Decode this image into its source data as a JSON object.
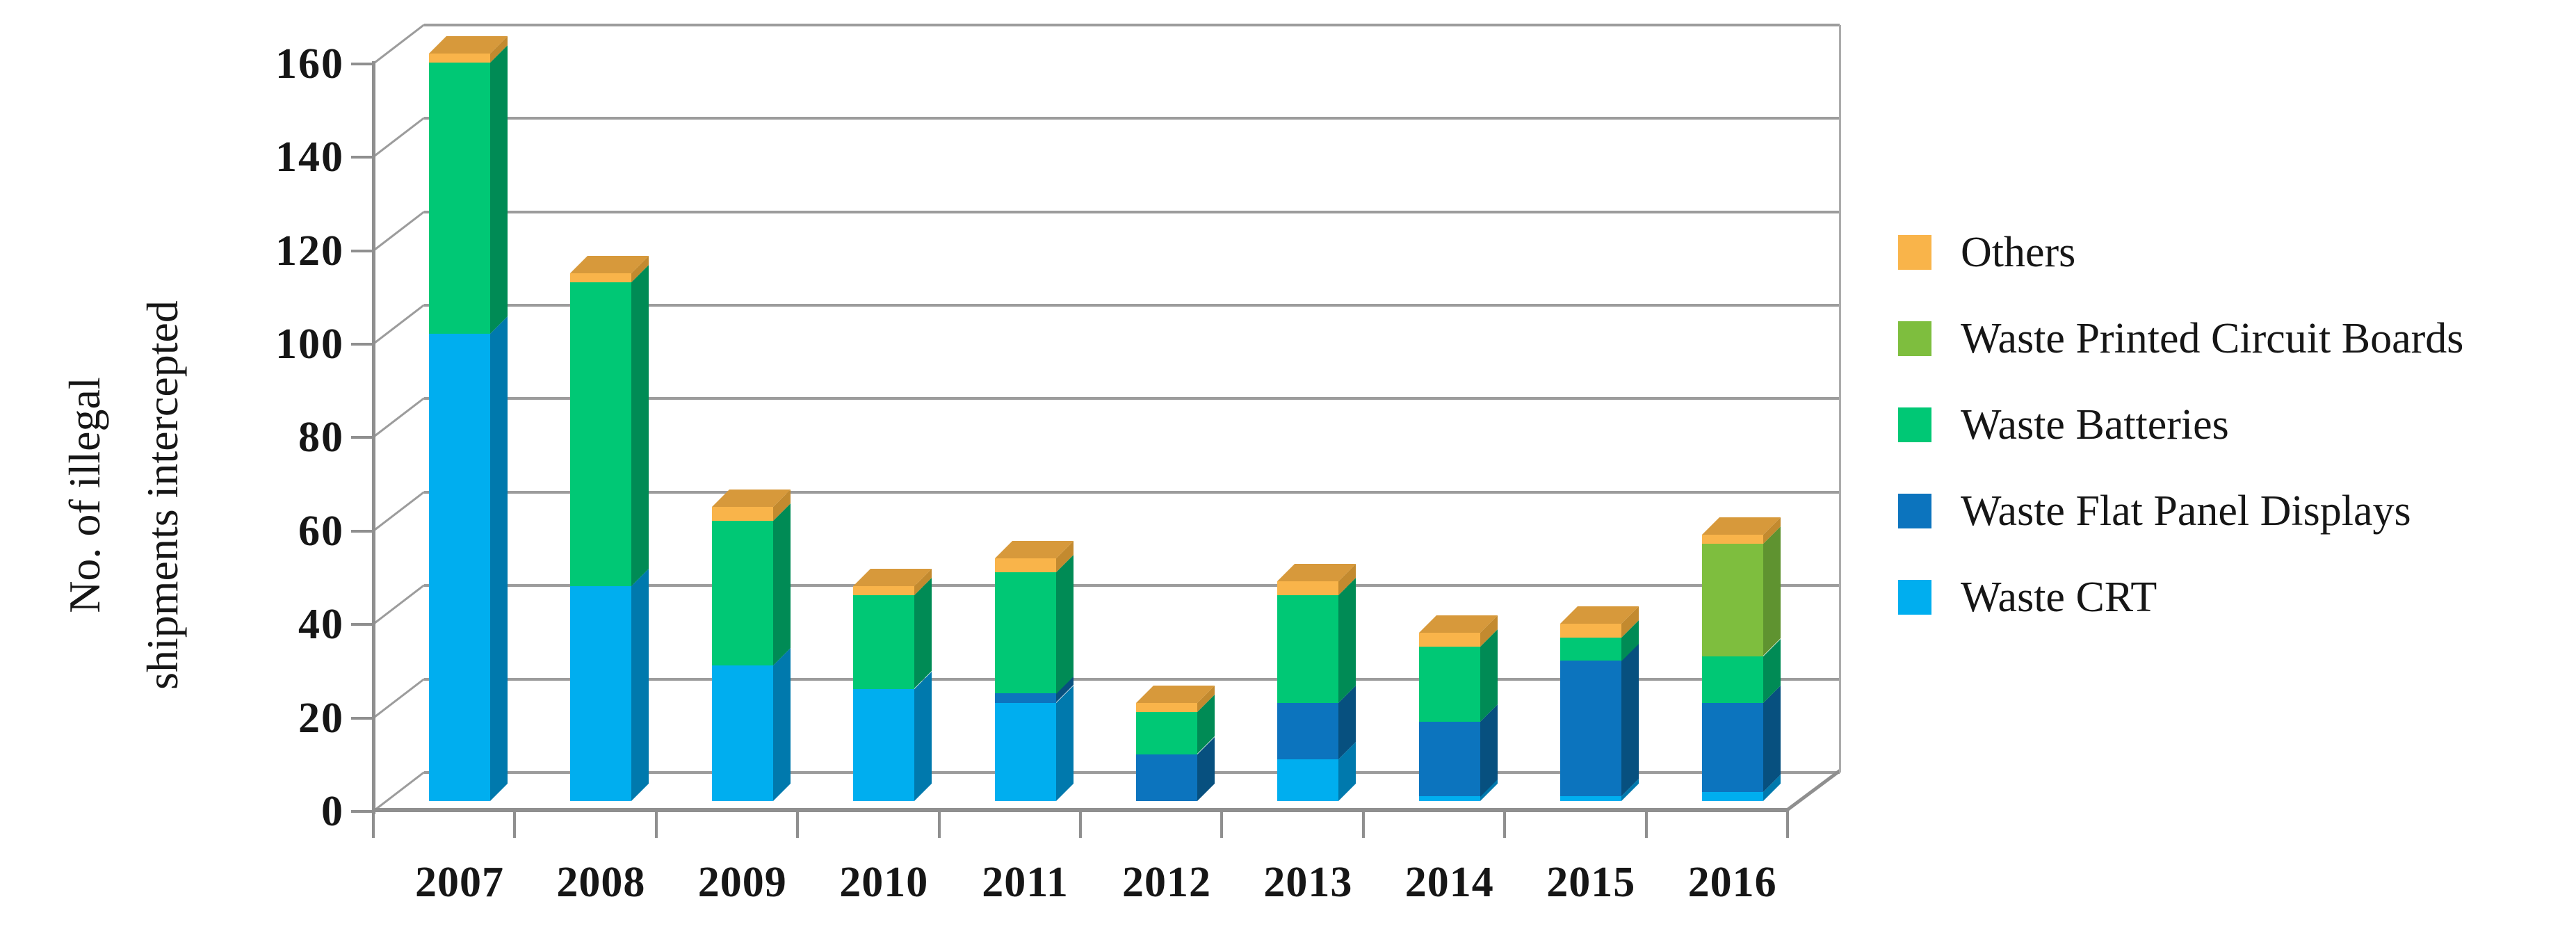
{
  "chart_data": {
    "type": "bar",
    "stacked": true,
    "pseudo_3d": true,
    "title": "",
    "ylabel_lines": [
      "No. of illegal",
      "shipments intercepted"
    ],
    "xlabel": "",
    "categories": [
      "2007",
      "2008",
      "2009",
      "2010",
      "2011",
      "2012",
      "2013",
      "2014",
      "2015",
      "2016"
    ],
    "series": [
      {
        "name": "Waste CRT",
        "color": "#00aeef",
        "side_color": "#0079ad",
        "values": [
          100,
          46,
          29,
          24,
          21,
          0,
          9,
          1,
          1,
          2
        ]
      },
      {
        "name": "Waste Flat Panel Displays",
        "color": "#0c74be",
        "side_color": "#07507f",
        "values": [
          0,
          0,
          0,
          0,
          2,
          10,
          12,
          16,
          29,
          19
        ]
      },
      {
        "name": "Waste Batteries",
        "color": "#00c875",
        "side_color": "#008b55",
        "values": [
          58,
          65,
          31,
          20,
          26,
          9,
          23,
          16,
          5,
          10
        ]
      },
      {
        "name": "Waste Printed Circuit Boards",
        "color": "#7ebe3e",
        "side_color": "#5f9330",
        "values": [
          0,
          0,
          0,
          0,
          0,
          0,
          0,
          0,
          0,
          24
        ]
      },
      {
        "name": "Others",
        "color": "#f9b44a",
        "side_color": "#c38a2f",
        "top_color": "#d7993b",
        "values": [
          2,
          2,
          3,
          2,
          3,
          2,
          3,
          3,
          3,
          2
        ]
      }
    ],
    "totals": [
      160,
      113,
      63,
      46,
      52,
      21,
      47,
      36,
      38,
      57
    ],
    "y_axis": {
      "min": 0,
      "max": 160,
      "step": 20,
      "tick_labels": [
        "0",
        "20",
        "40",
        "60",
        "80",
        "100",
        "120",
        "140",
        "160"
      ]
    },
    "grid": true,
    "legend": {
      "position": "right",
      "items": [
        "Others",
        "Waste Printed Circuit Boards",
        "Waste Batteries",
        "Waste Flat Panel Displays",
        "Waste CRT"
      ]
    }
  }
}
